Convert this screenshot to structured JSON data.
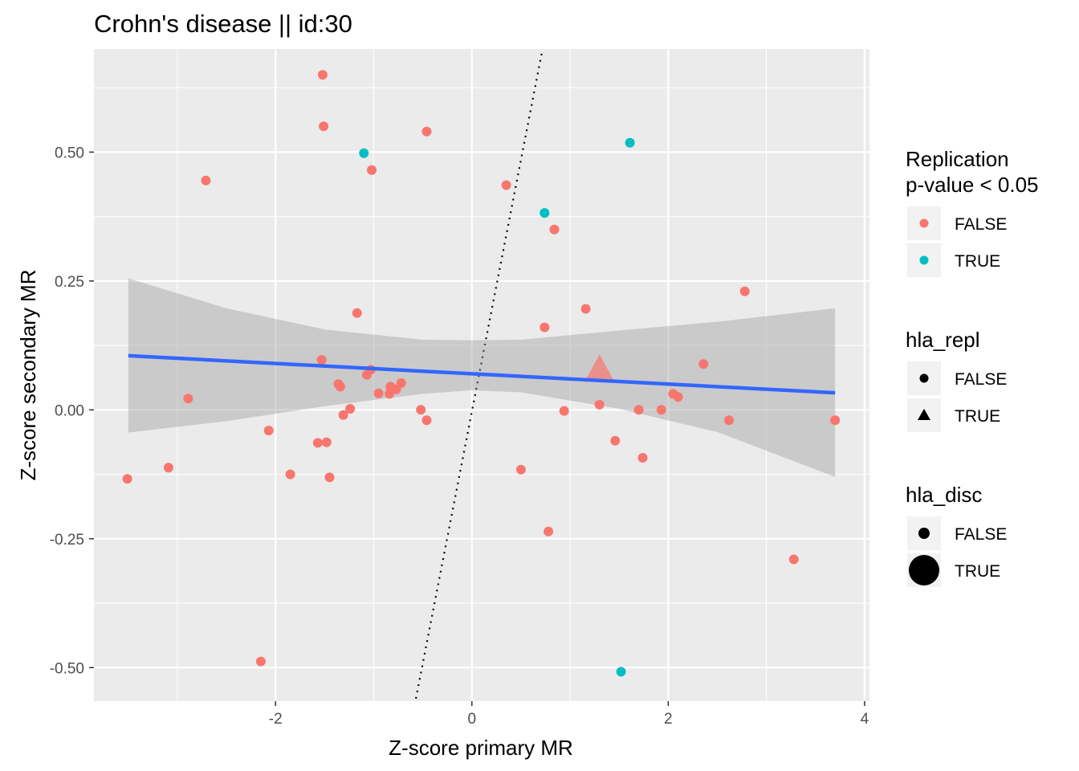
{
  "chart_data": {
    "type": "scatter",
    "title": "Crohn's disease || id:30",
    "xlabel": "Z-score primary MR",
    "ylabel": "Z-score secondary MR",
    "xlim": [
      -3.85,
      4.05
    ],
    "ylim": [
      -0.565,
      0.7
    ],
    "x_ticks": [
      -2,
      0,
      2,
      4
    ],
    "x_tick_labels": [
      "-2",
      "0",
      "2",
      "4"
    ],
    "y_ticks": [
      -0.5,
      -0.25,
      0.0,
      0.25,
      0.5
    ],
    "y_tick_labels": [
      "-0.50",
      "-0.25",
      "0.00",
      "0.25",
      "0.50"
    ],
    "grid": true,
    "reference_line": {
      "style": "dotted",
      "points": [
        [
          -0.57,
          -0.56
        ],
        [
          0.72,
          0.7
        ]
      ]
    },
    "regression": {
      "x": [
        -3.5,
        3.7
      ],
      "y": [
        0.105,
        0.033
      ],
      "ci_x": [
        -3.5,
        -2.5,
        -1.5,
        -0.5,
        0.0,
        0.5,
        1.5,
        2.5,
        3.7
      ],
      "ci_lower": [
        -0.044,
        -0.022,
        0.007,
        0.031,
        0.038,
        0.034,
        0.002,
        -0.043,
        -0.13
      ],
      "ci_upper": [
        0.255,
        0.197,
        0.156,
        0.136,
        0.135,
        0.136,
        0.154,
        0.171,
        0.197
      ]
    },
    "series": [
      {
        "name": "FALSE",
        "color": "#F8766D",
        "points": [
          [
            -1.52,
            0.65
          ],
          [
            -1.51,
            0.55
          ],
          [
            -0.46,
            0.54
          ],
          [
            -1.02,
            0.465
          ],
          [
            -2.71,
            0.445
          ],
          [
            0.35,
            0.436
          ],
          [
            0.84,
            0.35
          ],
          [
            2.78,
            0.23
          ],
          [
            1.16,
            0.196
          ],
          [
            -1.17,
            0.188
          ],
          [
            0.74,
            0.16
          ],
          [
            -1.53,
            0.097
          ],
          [
            2.36,
            0.089
          ],
          [
            -1.03,
            0.078
          ],
          [
            -1.07,
            0.068
          ],
          [
            -1.36,
            0.05
          ],
          [
            -0.72,
            0.052
          ],
          [
            -1.34,
            0.045
          ],
          [
            -0.83,
            0.045
          ],
          [
            -0.77,
            0.04
          ],
          [
            -0.95,
            0.032
          ],
          [
            -0.84,
            0.031
          ],
          [
            2.05,
            0.031
          ],
          [
            2.1,
            0.025
          ],
          [
            -2.89,
            0.022
          ],
          [
            1.3,
            0.01
          ],
          [
            -1.24,
            0.002
          ],
          [
            -0.52,
            0.0
          ],
          [
            1.7,
            0.0
          ],
          [
            1.93,
            0.0
          ],
          [
            0.94,
            -0.002
          ],
          [
            -1.31,
            -0.01
          ],
          [
            -0.46,
            -0.02
          ],
          [
            2.62,
            -0.02
          ],
          [
            3.7,
            -0.02
          ],
          [
            -2.07,
            -0.04
          ],
          [
            -1.57,
            -0.064
          ],
          [
            -1.48,
            -0.063
          ],
          [
            1.46,
            -0.06
          ],
          [
            1.74,
            -0.093
          ],
          [
            -3.09,
            -0.112
          ],
          [
            0.5,
            -0.116
          ],
          [
            -1.85,
            -0.125
          ],
          [
            -1.45,
            -0.131
          ],
          [
            -3.51,
            -0.134
          ],
          [
            0.78,
            -0.236
          ],
          [
            3.28,
            -0.29
          ],
          [
            -2.15,
            -0.488
          ]
        ]
      },
      {
        "name": "TRUE",
        "color": "#00BFC4",
        "points": [
          [
            1.61,
            0.518
          ],
          [
            -1.1,
            0.498
          ],
          [
            0.74,
            0.382
          ],
          [
            1.52,
            -0.508
          ]
        ]
      }
    ],
    "highlight": {
      "shape": "triangle",
      "x": 1.3,
      "y": 0.05,
      "color": "#F8766D",
      "opacity": 0.7
    },
    "legends": [
      {
        "title": [
          "Replication",
          "p-value < 0.05"
        ],
        "items": [
          {
            "label": "FALSE",
            "color": "#F8766D",
            "shape": "circle"
          },
          {
            "label": "TRUE",
            "color": "#00BFC4",
            "shape": "circle"
          }
        ]
      },
      {
        "title": [
          "hla_repl"
        ],
        "items": [
          {
            "label": "FALSE",
            "color": "#000000",
            "shape": "circle"
          },
          {
            "label": "TRUE",
            "color": "#000000",
            "shape": "triangle"
          }
        ]
      },
      {
        "title": [
          "hla_disc"
        ],
        "items": [
          {
            "label": "FALSE",
            "color": "#000000",
            "shape": "circle"
          },
          {
            "label": "TRUE",
            "color": "#000000",
            "shape": "circle-large"
          }
        ]
      }
    ]
  }
}
